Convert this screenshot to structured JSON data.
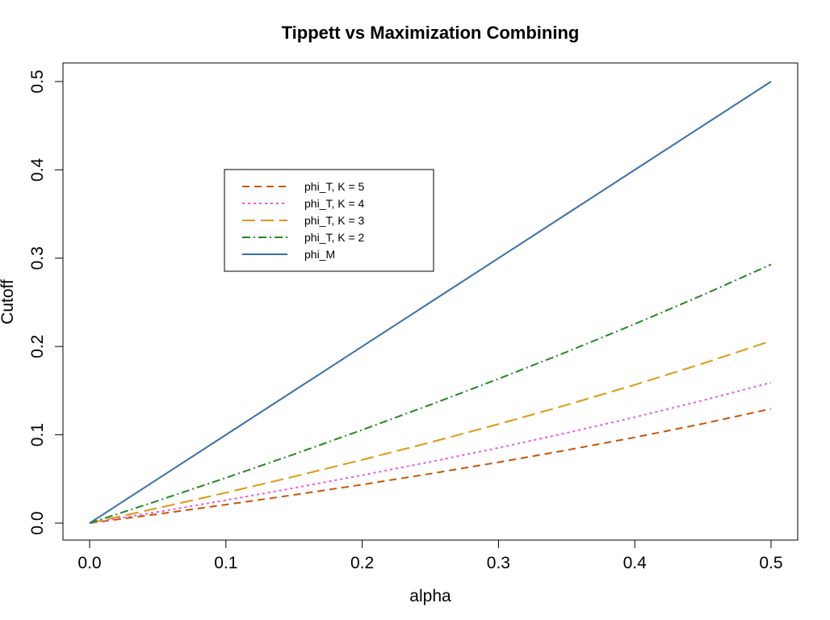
{
  "chart_data": {
    "type": "line",
    "title": "Tippett vs Maximization Combining",
    "xlabel": "alpha",
    "ylabel": "Cutoff",
    "xlim": [
      0.0,
      0.5
    ],
    "ylim": [
      0.0,
      0.5
    ],
    "xticks": [
      "0.0",
      "0.1",
      "0.2",
      "0.3",
      "0.4",
      "0.5"
    ],
    "yticks": [
      "0.0",
      "0.1",
      "0.2",
      "0.3",
      "0.4",
      "0.5"
    ],
    "grid": false,
    "legend_position": "upper-left-center",
    "x": [
      0.0,
      0.05,
      0.1,
      0.15,
      0.2,
      0.25,
      0.3,
      0.35,
      0.4,
      0.45,
      0.5
    ],
    "series": [
      {
        "name": "phi_T, K = 5",
        "color": "#cc5500",
        "dash": "9,6",
        "values": [
          0.0,
          0.0102,
          0.0209,
          0.032,
          0.0436,
          0.0559,
          0.0689,
          0.0826,
          0.0971,
          0.1126,
          0.1294
        ]
      },
      {
        "name": "phi_T, K = 4",
        "color": "#ee55dd",
        "dash": "3,4",
        "values": [
          0.0,
          0.0127,
          0.026,
          0.0398,
          0.0543,
          0.0694,
          0.0853,
          0.1021,
          0.1199,
          0.1389,
          0.1591
        ]
      },
      {
        "name": "phi_T, K = 3",
        "color": "#dd9911",
        "dash": "16,7",
        "values": [
          0.0,
          0.017,
          0.0345,
          0.0527,
          0.0717,
          0.0914,
          0.1121,
          0.1338,
          0.1566,
          0.1807,
          0.2063
        ]
      },
      {
        "name": "phi_T, K = 2",
        "color": "#228822",
        "dash": "10,4,2,4",
        "values": [
          0.0,
          0.0253,
          0.0513,
          0.078,
          0.1056,
          0.134,
          0.1633,
          0.1938,
          0.2254,
          0.2584,
          0.2929
        ]
      },
      {
        "name": "phi_M",
        "color": "#3a6fa8",
        "dash": "",
        "values": [
          0.0,
          0.05,
          0.1,
          0.15,
          0.2,
          0.25,
          0.3,
          0.35,
          0.4,
          0.45,
          0.5
        ]
      }
    ]
  }
}
